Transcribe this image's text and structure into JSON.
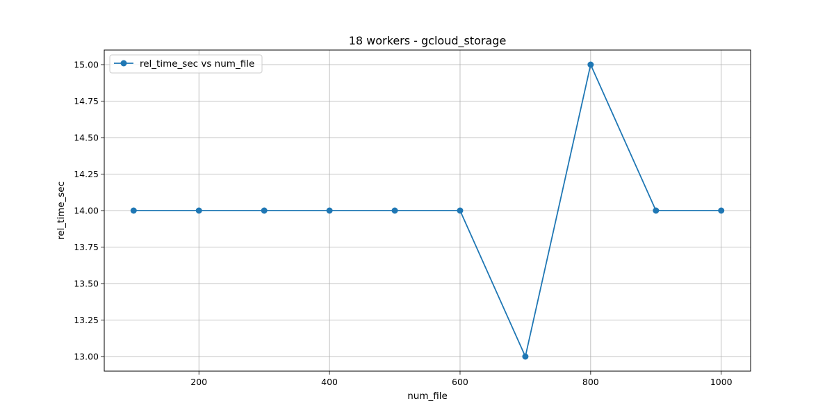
{
  "chart_data": {
    "type": "line",
    "title": "18 workers - gcloud_storage",
    "xlabel": "num_file",
    "ylabel": "rel_time_sec",
    "x": [
      100,
      200,
      300,
      400,
      500,
      600,
      700,
      800,
      900,
      1000
    ],
    "series": [
      {
        "name": "rel_time_sec vs num_file",
        "values": [
          14.0,
          14.0,
          14.0,
          14.0,
          14.0,
          14.0,
          13.0,
          15.0,
          14.0,
          14.0
        ],
        "color": "#1f77b4",
        "marker": "circle"
      }
    ],
    "xlim": [
      55,
      1045
    ],
    "ylim": [
      12.9,
      15.1
    ],
    "xticks": [
      200,
      400,
      600,
      800,
      1000
    ],
    "xtick_labels": [
      "200",
      "400",
      "600",
      "800",
      "1000"
    ],
    "yticks": [
      13.0,
      13.25,
      13.5,
      13.75,
      14.0,
      14.25,
      14.5,
      14.75,
      15.0
    ],
    "ytick_labels": [
      "13.00",
      "13.25",
      "13.50",
      "13.75",
      "14.00",
      "14.25",
      "14.50",
      "14.75",
      "15.00"
    ],
    "grid": true,
    "legend_position": "top-left"
  }
}
